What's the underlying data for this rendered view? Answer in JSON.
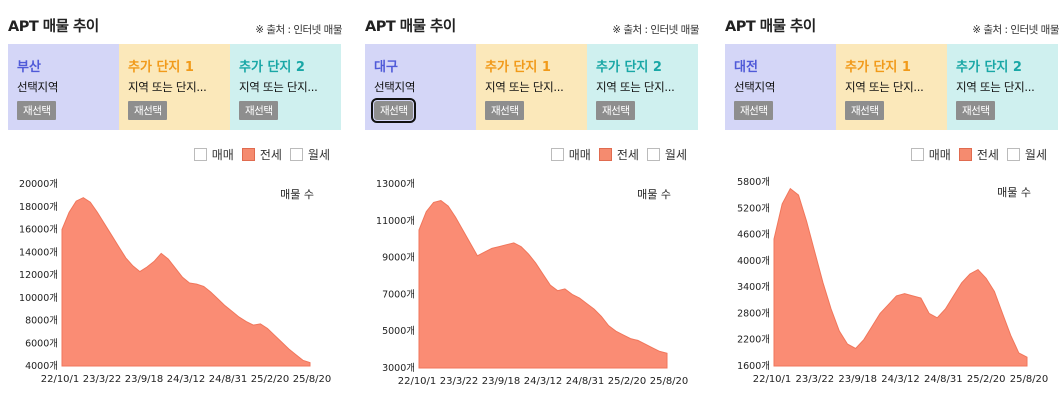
{
  "colors": {
    "area": "#fa8c74",
    "area_stroke": "#f0765b",
    "card_primary": "#d4d6f7",
    "card_extra1": "#fbe8ba",
    "card_extra2": "#cff0ef",
    "primary_text": "#4f5ad8",
    "extra1_text": "#f19a1a",
    "extra2_text": "#19a7a6"
  },
  "panels": [
    {
      "title": "APT 매물 추이",
      "source": "※ 출처 : 인터넷 매물",
      "cards": [
        {
          "name": "부산",
          "sub": "선택지역",
          "button": "재선택"
        },
        {
          "name": "추가 단지 1",
          "sub": "지역 또는 단지...",
          "button": "재선택"
        },
        {
          "name": "추가 단지 2",
          "sub": "지역 또는 단지...",
          "button": "재선택"
        }
      ],
      "legend": [
        {
          "label": "매매",
          "checked": false
        },
        {
          "label": "전세",
          "checked": true
        },
        {
          "label": "월세",
          "checked": false
        }
      ],
      "chart_data": {
        "type": "area",
        "series_label": "매물 수",
        "yticks": [
          "4000개",
          "6000개",
          "8000개",
          "10000개",
          "12000개",
          "14000개",
          "16000개",
          "18000개",
          "20000개"
        ],
        "xticks": [
          "22/10/1",
          "23/3/22",
          "23/9/18",
          "24/3/12",
          "24/8/31",
          "25/2/20",
          "25/8/20"
        ],
        "ylim": [
          4000,
          20000
        ],
        "values": [
          16000,
          17500,
          18500,
          18800,
          18400,
          17500,
          16500,
          15500,
          14500,
          13500,
          12800,
          12300,
          12700,
          13200,
          13900,
          13400,
          12600,
          11800,
          11300,
          11200,
          11000,
          10500,
          9900,
          9300,
          8800,
          8300,
          7900,
          7600,
          7700,
          7300,
          6700,
          6100,
          5500,
          5000,
          4500,
          4300
        ]
      }
    },
    {
      "title": "APT 매물 추이",
      "source": "※ 출처 : 인터넷 매물",
      "cards": [
        {
          "name": "대구",
          "sub": "선택지역",
          "button": "재선택",
          "focused": true
        },
        {
          "name": "추가 단지 1",
          "sub": "지역 또는 단지...",
          "button": "재선택"
        },
        {
          "name": "추가 단지 2",
          "sub": "지역 또는 단지...",
          "button": "재선택"
        }
      ],
      "legend": [
        {
          "label": "매매",
          "checked": false
        },
        {
          "label": "전세",
          "checked": true
        },
        {
          "label": "월세",
          "checked": false
        }
      ],
      "chart_data": {
        "type": "area",
        "series_label": "매물 수",
        "yticks": [
          "3000개",
          "5000개",
          "7000개",
          "9000개",
          "11000개",
          "13000개"
        ],
        "xticks": [
          "22/10/1",
          "23/3/22",
          "23/9/18",
          "24/3/12",
          "24/8/31",
          "25/2/20",
          "25/8/20"
        ],
        "ylim": [
          3000,
          13000
        ],
        "values": [
          10500,
          11500,
          12000,
          12100,
          11800,
          11200,
          10500,
          9800,
          9100,
          9300,
          9500,
          9600,
          9700,
          9800,
          9600,
          9200,
          8700,
          8100,
          7500,
          7200,
          7300,
          7000,
          6800,
          6500,
          6200,
          5800,
          5300,
          5000,
          4800,
          4600,
          4500,
          4300,
          4100,
          3900,
          3800
        ]
      }
    },
    {
      "title": "APT 매물 추이",
      "source": "※ 출처 : 인터넷 매물",
      "cards": [
        {
          "name": "대전",
          "sub": "선택지역",
          "button": "재선택"
        },
        {
          "name": "추가 단지 1",
          "sub": "지역 또는 단지...",
          "button": "재선택"
        },
        {
          "name": "추가 단지 2",
          "sub": "지역 또는 단지...",
          "button": "재선택"
        }
      ],
      "legend": [
        {
          "label": "매매",
          "checked": false
        },
        {
          "label": "전세",
          "checked": true
        },
        {
          "label": "월세",
          "checked": false
        }
      ],
      "chart_data": {
        "type": "area",
        "series_label": "매물 수",
        "yticks": [
          "1600개",
          "2200개",
          "2800개",
          "3400개",
          "4000개",
          "4600개",
          "5200개",
          "5800개"
        ],
        "xticks": [
          "22/10/1",
          "23/3/22",
          "23/9/18",
          "24/3/12",
          "24/8/31",
          "25/2/20",
          "25/8/20"
        ],
        "ylim": [
          1600,
          5800
        ],
        "values": [
          4500,
          5300,
          5650,
          5500,
          4900,
          4200,
          3500,
          2900,
          2400,
          2100,
          2000,
          2200,
          2500,
          2800,
          3000,
          3200,
          3250,
          3200,
          3150,
          2800,
          2700,
          2900,
          3200,
          3500,
          3700,
          3800,
          3600,
          3300,
          2800,
          2300,
          1900,
          1800
        ]
      }
    }
  ]
}
